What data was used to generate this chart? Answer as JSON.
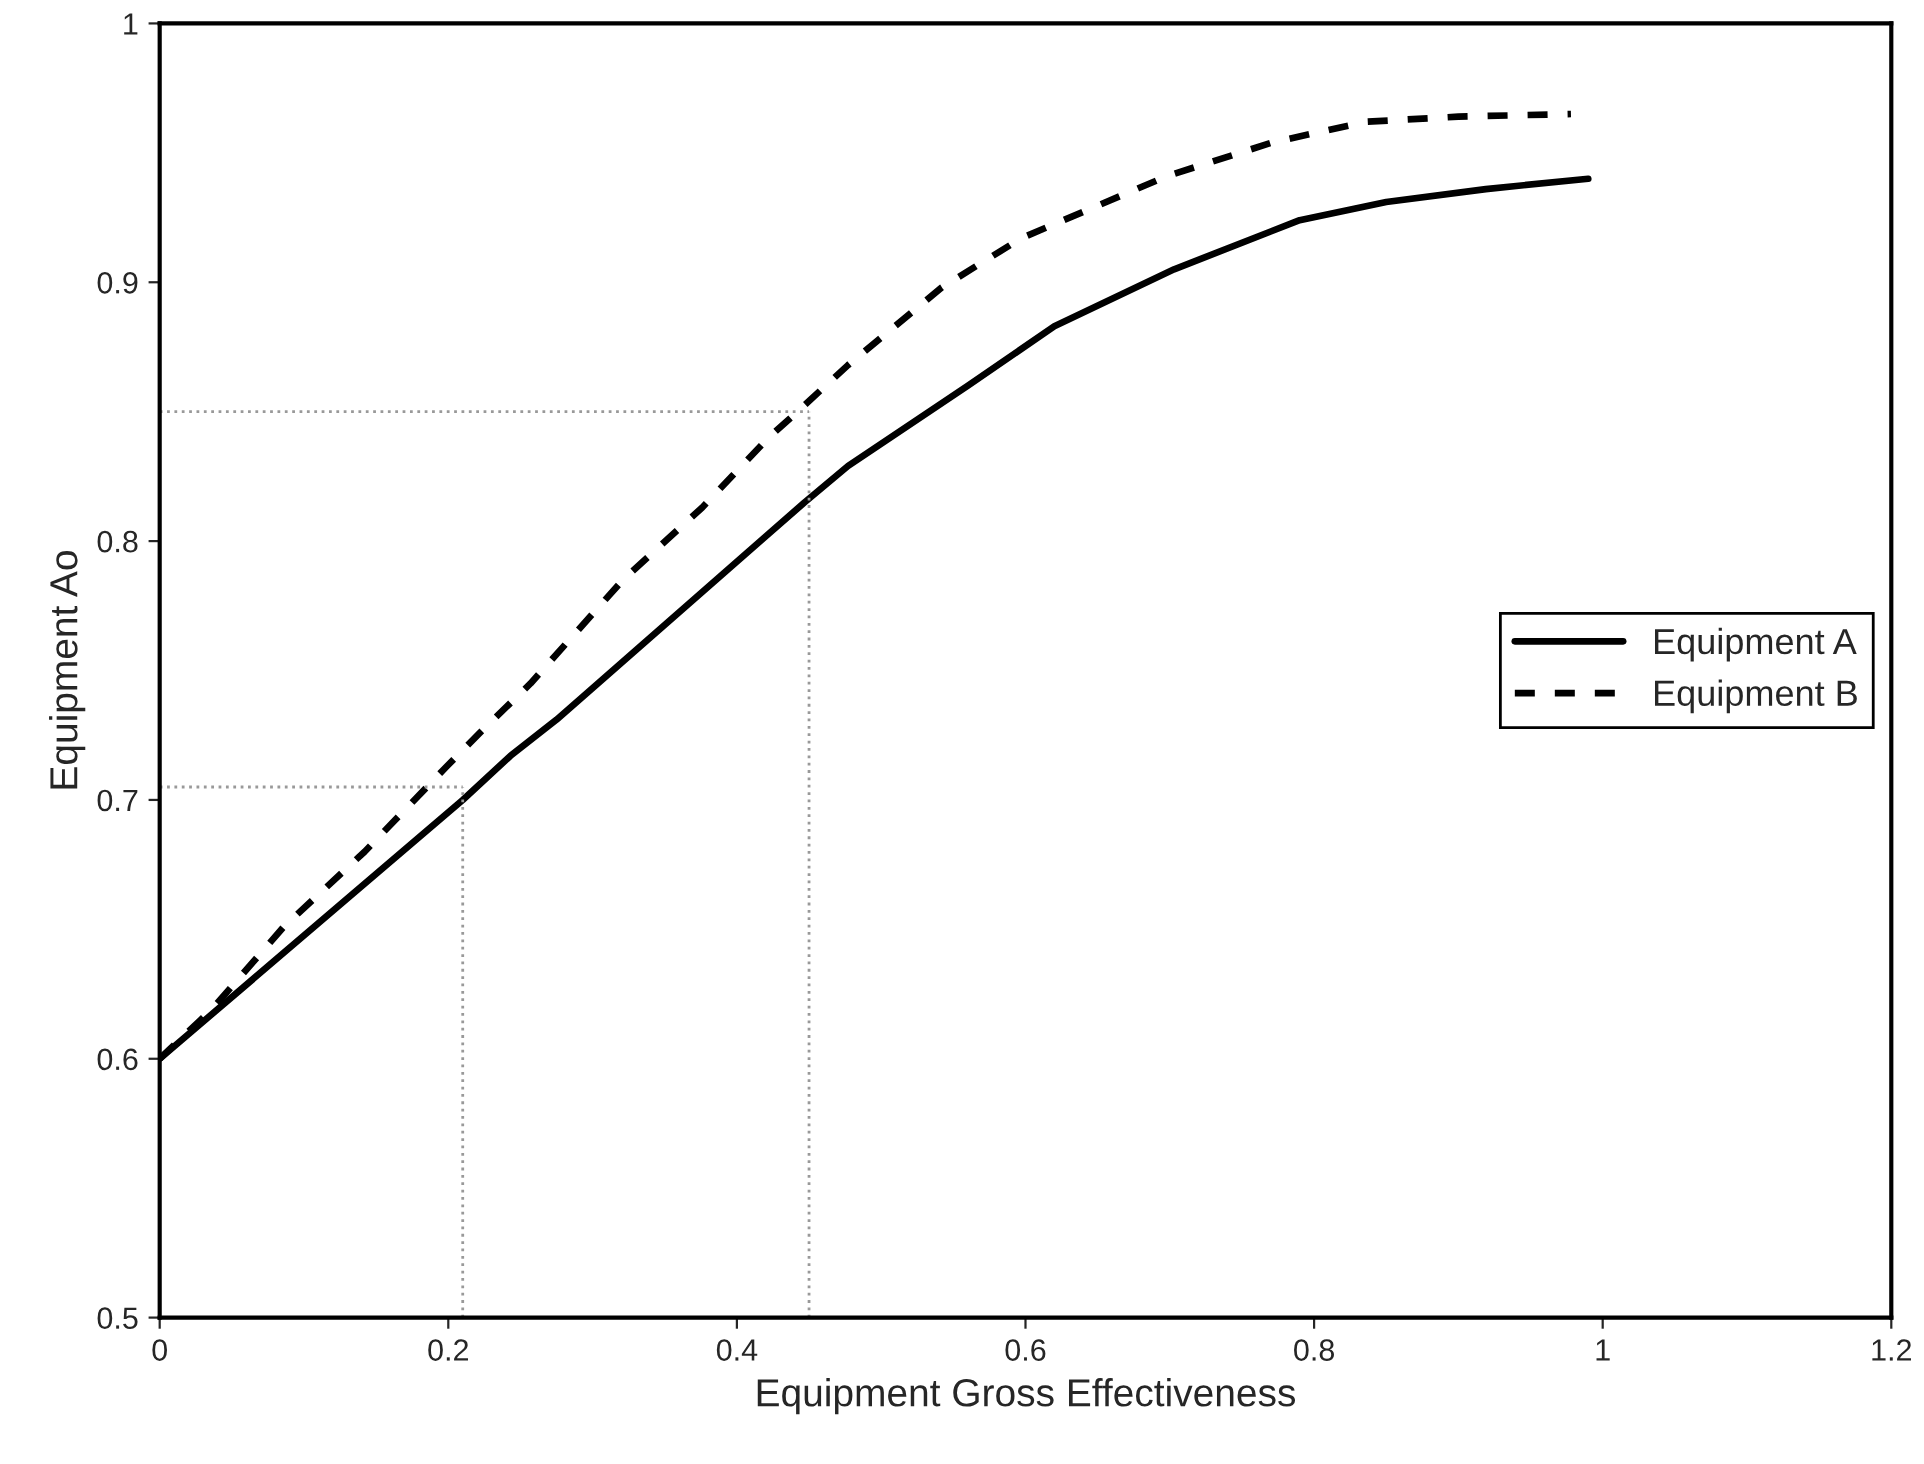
{
  "chart_data": {
    "type": "line",
    "xlabel": "Equipment Gross Effectiveness",
    "ylabel": "Equipment Ao",
    "xlim": [
      0,
      1.2
    ],
    "xticks": [
      0,
      0.2,
      0.4,
      0.6,
      0.8,
      1,
      1.2
    ],
    "ylim": [
      0.5,
      1
    ],
    "yticks": [
      0.5,
      0.6,
      0.7,
      0.8,
      0.9,
      1
    ],
    "grid": false,
    "legend": "right",
    "marker": "none",
    "series": [
      {
        "name": "Equipment A",
        "color": "#000000",
        "line_style": "solid",
        "x": [
          0,
          0.21,
          0.243,
          0.275,
          0.447,
          0.477,
          0.56,
          0.62,
          0.703,
          0.79,
          0.85,
          0.919,
          0.99
        ],
        "values": [
          0.6,
          0.7,
          0.717,
          0.731,
          0.815,
          0.829,
          0.86,
          0.883,
          0.905,
          0.924,
          0.931,
          0.936,
          0.94
        ]
      },
      {
        "name": "Equipment B",
        "color": "#000000",
        "line_style": "dashed",
        "x": [
          0,
          0.036,
          0.086,
          0.142,
          0.199,
          0.222,
          0.257,
          0.321,
          0.376,
          0.422,
          0.44,
          0.477,
          0.542,
          0.597,
          0.698,
          0.771,
          0.836,
          0.9,
          0.978
        ],
        "values": [
          0.6,
          0.619,
          0.651,
          0.68,
          0.713,
          0.726,
          0.745,
          0.785,
          0.813,
          0.84,
          0.849,
          0.868,
          0.898,
          0.917,
          0.941,
          0.954,
          0.962,
          0.964,
          0.965
        ]
      }
    ],
    "ref_lines": [
      {
        "axis": "x",
        "value": 0.21,
        "color": "#999999",
        "line_style": "dotted"
      },
      {
        "axis": "x",
        "value": 0.45,
        "color": "#999999",
        "line_style": "dotted"
      },
      {
        "axis": "y",
        "value": 0.705,
        "color": "#999999",
        "line_style": "dotted"
      },
      {
        "axis": "y",
        "value": 0.85,
        "color": "#999999",
        "line_style": "dotted"
      }
    ]
  }
}
